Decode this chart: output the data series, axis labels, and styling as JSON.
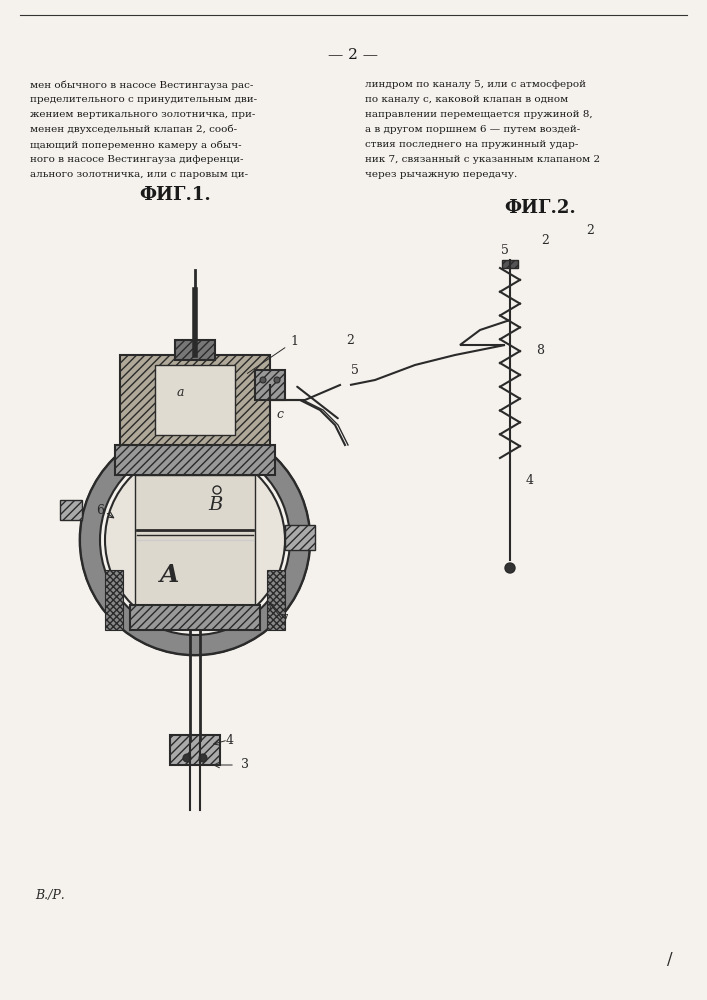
{
  "page_number": "— 2 —",
  "bg_color": "#f5f2ed",
  "text_color": "#1a1a1a",
  "fig1_label": "ФИГ.1.",
  "fig2_label": "ФИГ.2.",
  "signature": "В./Р.",
  "text_left": "мен обычного в насосе Вестингауза рас-\nпределительного с принудительным дви-\nжением вертикального золотничка, при-\nменен двухседельный клапан 2, сооб-\nщающий попеременно камеру а обыч-\nного в насосе Вестингауза диференци-\nального золотничка, или с паровым ци-",
  "text_right": "линдром по каналу 5, или с атмосферой\nпо каналу с, каковой клапан в одном\nнаправлении перемещается пружиной 8,\nа в другом поршнем 6 — путем воздей-\nствия последнего на пружинный удар-\nник 7, связанный с указанным клапаном 2\nчерез рычажную передачу."
}
